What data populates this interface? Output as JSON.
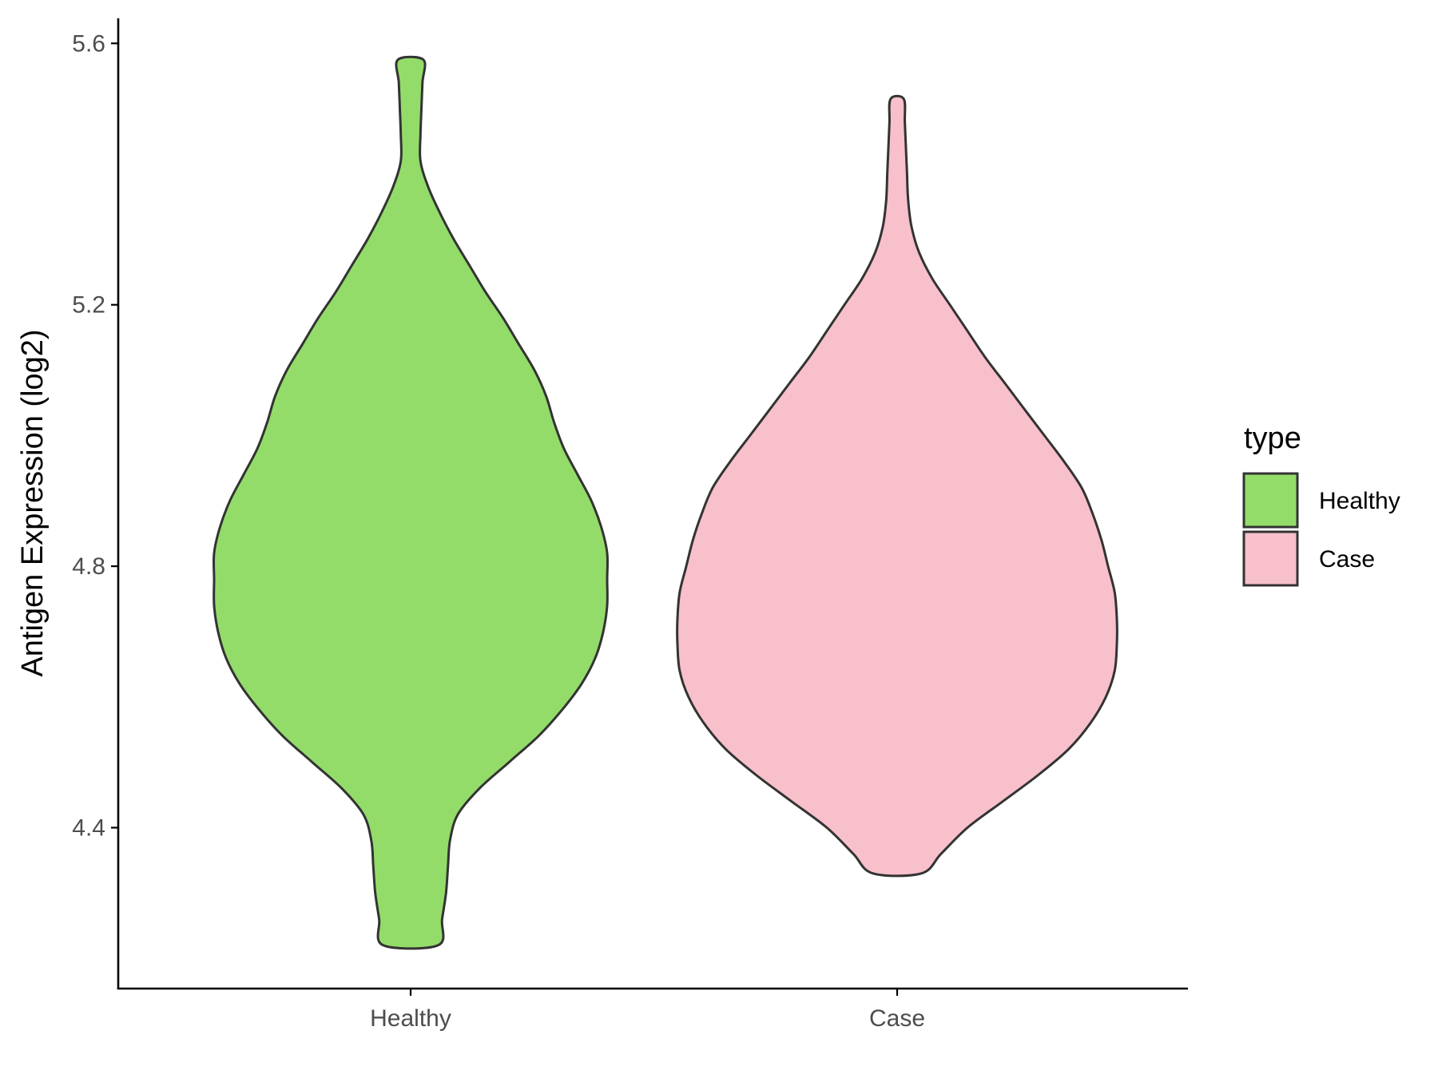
{
  "chart_data": {
    "type": "violin",
    "title": "",
    "xlabel": "",
    "ylabel": "Antigen Expression (log2)",
    "ylim": [
      4.14,
      5.64
    ],
    "yticks": [
      "4.4",
      "4.8",
      "5.2",
      "5.6"
    ],
    "categories": [
      "Healthy",
      "Case"
    ],
    "grid": false,
    "legend": {
      "title": "type",
      "position": "right",
      "entries": [
        {
          "label": "Healthy",
          "color": "#93DC6A"
        },
        {
          "label": "Case",
          "color": "#F7C0CB"
        }
      ]
    },
    "series": [
      {
        "category": "Healthy",
        "color": "#93DC6A",
        "min": 4.22,
        "max": 5.575,
        "density": [
          [
            4.22,
            0.14
          ],
          [
            4.26,
            0.16
          ],
          [
            4.3,
            0.18
          ],
          [
            4.34,
            0.19
          ],
          [
            4.38,
            0.2
          ],
          [
            4.42,
            0.24
          ],
          [
            4.46,
            0.35
          ],
          [
            4.5,
            0.5
          ],
          [
            4.54,
            0.65
          ],
          [
            4.58,
            0.77
          ],
          [
            4.62,
            0.87
          ],
          [
            4.66,
            0.94
          ],
          [
            4.7,
            0.98
          ],
          [
            4.74,
            1.0
          ],
          [
            4.78,
            1.0
          ],
          [
            4.82,
            1.0
          ],
          [
            4.86,
            0.97
          ],
          [
            4.9,
            0.92
          ],
          [
            4.94,
            0.85
          ],
          [
            4.98,
            0.78
          ],
          [
            5.02,
            0.73
          ],
          [
            5.06,
            0.69
          ],
          [
            5.1,
            0.63
          ],
          [
            5.14,
            0.55
          ],
          [
            5.18,
            0.47
          ],
          [
            5.22,
            0.38
          ],
          [
            5.26,
            0.3
          ],
          [
            5.3,
            0.22
          ],
          [
            5.34,
            0.15
          ],
          [
            5.38,
            0.09
          ],
          [
            5.42,
            0.05
          ],
          [
            5.46,
            0.05
          ],
          [
            5.5,
            0.055
          ],
          [
            5.54,
            0.06
          ],
          [
            5.575,
            0.065
          ]
        ]
      },
      {
        "category": "Case",
        "color": "#F7C0CB",
        "min": 4.33,
        "max": 5.515,
        "density": [
          [
            4.33,
            0.11
          ],
          [
            4.36,
            0.2
          ],
          [
            4.4,
            0.32
          ],
          [
            4.44,
            0.48
          ],
          [
            4.48,
            0.64
          ],
          [
            4.52,
            0.78
          ],
          [
            4.56,
            0.88
          ],
          [
            4.6,
            0.95
          ],
          [
            4.64,
            0.99
          ],
          [
            4.68,
            1.0
          ],
          [
            4.72,
            1.0
          ],
          [
            4.76,
            0.99
          ],
          [
            4.8,
            0.96
          ],
          [
            4.84,
            0.93
          ],
          [
            4.88,
            0.89
          ],
          [
            4.92,
            0.84
          ],
          [
            4.96,
            0.76
          ],
          [
            5.0,
            0.67
          ],
          [
            5.04,
            0.58
          ],
          [
            5.08,
            0.49
          ],
          [
            5.12,
            0.4
          ],
          [
            5.16,
            0.32
          ],
          [
            5.2,
            0.24
          ],
          [
            5.24,
            0.16
          ],
          [
            5.28,
            0.1
          ],
          [
            5.32,
            0.065
          ],
          [
            5.36,
            0.05
          ],
          [
            5.4,
            0.045
          ],
          [
            5.44,
            0.04
          ],
          [
            5.48,
            0.035
          ],
          [
            5.515,
            0.03
          ]
        ]
      }
    ]
  }
}
